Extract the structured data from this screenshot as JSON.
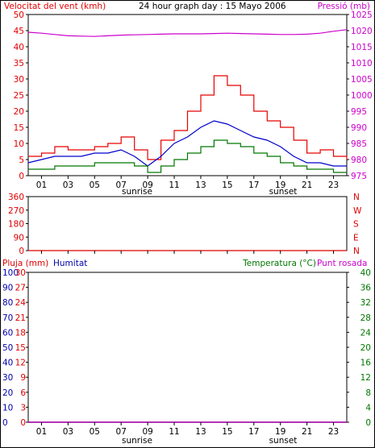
{
  "colors": {
    "wind_gust": "#e60000",
    "wind_avg": "#0000cc",
    "wind_min": "#007700",
    "pressure": "#cc00cc",
    "direction": "#dd0000",
    "rain": "#dd0000",
    "humidity": "#0000aa",
    "temperature": "#007700",
    "dewpoint": "#cc00cc",
    "axis_text": "#000000"
  },
  "chart_data": [
    {
      "type": "line",
      "panel": "wind-pressure",
      "title": "24 hour graph day : 15 Mayo 2006",
      "ylabel_left": "Velocitat del vent (kmh)",
      "ylabel_right": "Pressió (mb)",
      "ylim_left": [
        0,
        50
      ],
      "yticks_left": [
        0,
        5,
        10,
        15,
        20,
        25,
        30,
        35,
        40,
        45,
        50
      ],
      "ylim_right": [
        975,
        1025
      ],
      "yticks_right": [
        975,
        980,
        985,
        990,
        995,
        1000,
        1005,
        1010,
        1015,
        1020,
        1025
      ],
      "xticks": [
        "01",
        "03",
        "05",
        "07",
        "09",
        "11",
        "13",
        "15",
        "17",
        "19",
        "21",
        "23"
      ],
      "x_markers": [
        "sunrise",
        "sunset"
      ],
      "x": [
        0,
        1,
        2,
        3,
        4,
        5,
        6,
        7,
        8,
        9,
        10,
        11,
        12,
        13,
        14,
        15,
        16,
        17,
        18,
        19,
        20,
        21,
        22,
        23,
        24
      ],
      "series": [
        {
          "key": "gust",
          "values": [
            6,
            7,
            9,
            8,
            8,
            9,
            10,
            12,
            8,
            5,
            11,
            14,
            20,
            25,
            31,
            28,
            25,
            20,
            17,
            15,
            11,
            7,
            8,
            6,
            5
          ]
        },
        {
          "key": "avg",
          "values": [
            4,
            5,
            6,
            6,
            6,
            7,
            7,
            8,
            6,
            3,
            6,
            10,
            12,
            15,
            17,
            16,
            14,
            12,
            11,
            9,
            6,
            4,
            4,
            3,
            3
          ]
        },
        {
          "key": "min",
          "values": [
            2,
            2,
            3,
            3,
            3,
            4,
            4,
            4,
            3,
            1,
            3,
            5,
            7,
            9,
            11,
            10,
            9,
            7,
            6,
            4,
            3,
            2,
            2,
            1,
            1
          ]
        },
        {
          "key": "pressure",
          "axis": "right",
          "values": [
            1019.5,
            1019.2,
            1018.8,
            1018.4,
            1018.3,
            1018.2,
            1018.4,
            1018.6,
            1018.7,
            1018.8,
            1018.9,
            1019.0,
            1019.0,
            1019.0,
            1019.1,
            1019.2,
            1019.1,
            1019.0,
            1018.9,
            1018.8,
            1018.8,
            1018.9,
            1019.2,
            1019.8,
            1020.3
          ]
        }
      ]
    },
    {
      "type": "line",
      "panel": "wind-direction",
      "ylim_left": [
        0,
        360
      ],
      "yticks_left": [
        0,
        90,
        180,
        270,
        360
      ],
      "labels_right": [
        "N",
        "W",
        "S",
        "E",
        "N"
      ],
      "x": [
        0,
        0.5,
        1,
        1.5,
        2,
        2.5,
        3,
        3.5,
        4,
        4.5,
        5,
        5.5,
        6,
        6.5,
        7,
        7.5,
        8,
        8.2,
        8.5,
        9,
        9.5,
        10,
        10.5,
        11,
        11.5,
        12,
        12.5,
        13,
        13.5,
        14,
        14.5,
        15,
        15.5,
        16,
        16.5,
        17,
        17.5,
        18,
        18.5,
        19,
        19.5,
        20,
        20.5,
        21,
        21.5,
        22,
        22.5,
        23,
        23.5,
        24
      ],
      "series": [
        {
          "key": "direction",
          "values": [
            0,
            0,
            0,
            0,
            0,
            0,
            0,
            0,
            0,
            0,
            0,
            0,
            0,
            0,
            0,
            0,
            0,
            0,
            0,
            0,
            0,
            0,
            0,
            0,
            0,
            0,
            0,
            0,
            0,
            0,
            0,
            0,
            0,
            0,
            0,
            0,
            0,
            0,
            0,
            0,
            0,
            0,
            0,
            0,
            0,
            0,
            0,
            0,
            0,
            0
          ]
        }
      ]
    },
    {
      "type": "line",
      "panel": "rain-humidity-temperature",
      "ylabel_left_1": "Pluja (mm)",
      "ylabel_left_2": "Humitat",
      "ylabel_right": "Temperatura (°C)",
      "ylabel_right_2": "Punt rosada",
      "yticks_rain": [
        0,
        10,
        20,
        30,
        40,
        50,
        60,
        70,
        80,
        90,
        100
      ],
      "yticks_hum": [
        0,
        3,
        6,
        9,
        12,
        15,
        18,
        21,
        24,
        27,
        30
      ],
      "ylim_right": [
        0,
        40
      ],
      "yticks_right": [
        0,
        4,
        8,
        12,
        16,
        20,
        24,
        28,
        32,
        36,
        40
      ],
      "xticks": [
        "01",
        "03",
        "05",
        "07",
        "09",
        "11",
        "13",
        "15",
        "17",
        "19",
        "21",
        "23"
      ],
      "x_markers": [
        "sunrise",
        "sunset"
      ],
      "x": [
        0,
        1,
        2,
        3,
        4,
        5,
        6,
        7,
        8,
        9,
        10,
        11,
        12,
        13,
        14,
        15,
        16,
        17,
        18,
        19,
        20,
        21,
        22,
        23,
        24
      ],
      "series": [
        {
          "key": "rain",
          "values": [
            0,
            0,
            0,
            0,
            0,
            0,
            0,
            0,
            0,
            0,
            0,
            0,
            0,
            0,
            0,
            0,
            0,
            0,
            0,
            0,
            0,
            0,
            0,
            0,
            0
          ]
        },
        {
          "key": "humidity",
          "values": [
            0,
            0,
            0,
            0,
            0,
            0,
            0,
            0,
            0,
            0,
            0,
            0,
            0,
            0,
            0,
            0,
            0,
            0,
            0,
            0,
            0,
            0,
            0,
            0,
            0
          ]
        },
        {
          "key": "temperature",
          "axis": "right",
          "values": [
            0,
            0,
            0,
            0,
            0,
            0,
            0,
            0,
            0,
            0,
            0,
            0,
            0,
            0,
            0,
            0,
            0,
            0,
            0,
            0,
            0,
            0,
            0,
            0,
            0
          ]
        },
        {
          "key": "dewpoint",
          "axis": "right",
          "values": [
            0,
            0,
            0,
            0,
            0,
            0,
            0,
            0,
            0,
            0,
            0,
            0,
            0,
            0,
            0,
            0,
            0,
            0,
            0,
            0,
            0,
            0,
            0,
            0,
            0
          ]
        }
      ]
    }
  ]
}
